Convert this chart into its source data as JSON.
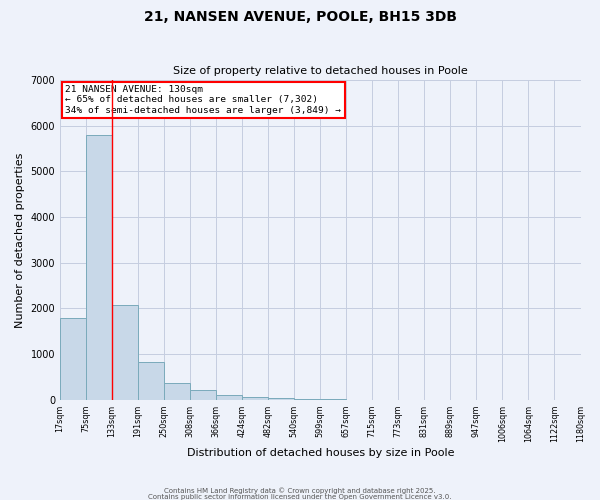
{
  "title": "21, NANSEN AVENUE, POOLE, BH15 3DB",
  "subtitle": "Size of property relative to detached houses in Poole",
  "xlabel": "Distribution of detached houses by size in Poole",
  "ylabel": "Number of detached properties",
  "bar_color": "#c8d8e8",
  "bar_edge_color": "#7aaabb",
  "background_color": "#eef2fa",
  "grid_color": "#c5cde0",
  "bin_labels": [
    "17sqm",
    "75sqm",
    "133sqm",
    "191sqm",
    "250sqm",
    "308sqm",
    "366sqm",
    "424sqm",
    "482sqm",
    "540sqm",
    "599sqm",
    "657sqm",
    "715sqm",
    "773sqm",
    "831sqm",
    "889sqm",
    "947sqm",
    "1006sqm",
    "1064sqm",
    "1122sqm",
    "1180sqm"
  ],
  "bar_heights": [
    1780,
    5800,
    2080,
    820,
    360,
    210,
    100,
    60,
    30,
    10,
    5,
    0,
    0,
    0,
    0,
    0,
    0,
    0,
    0,
    0
  ],
  "ylim": [
    0,
    7000
  ],
  "yticks": [
    0,
    1000,
    2000,
    3000,
    4000,
    5000,
    6000,
    7000
  ],
  "annotation_text_line1": "21 NANSEN AVENUE: 130sqm",
  "annotation_text_line2": "← 65% of detached houses are smaller (7,302)",
  "annotation_text_line3": "34% of semi-detached houses are larger (3,849) →",
  "red_line_bin_index": 2,
  "footer1": "Contains HM Land Registry data © Crown copyright and database right 2025.",
  "footer2": "Contains public sector information licensed under the Open Government Licence v3.0."
}
